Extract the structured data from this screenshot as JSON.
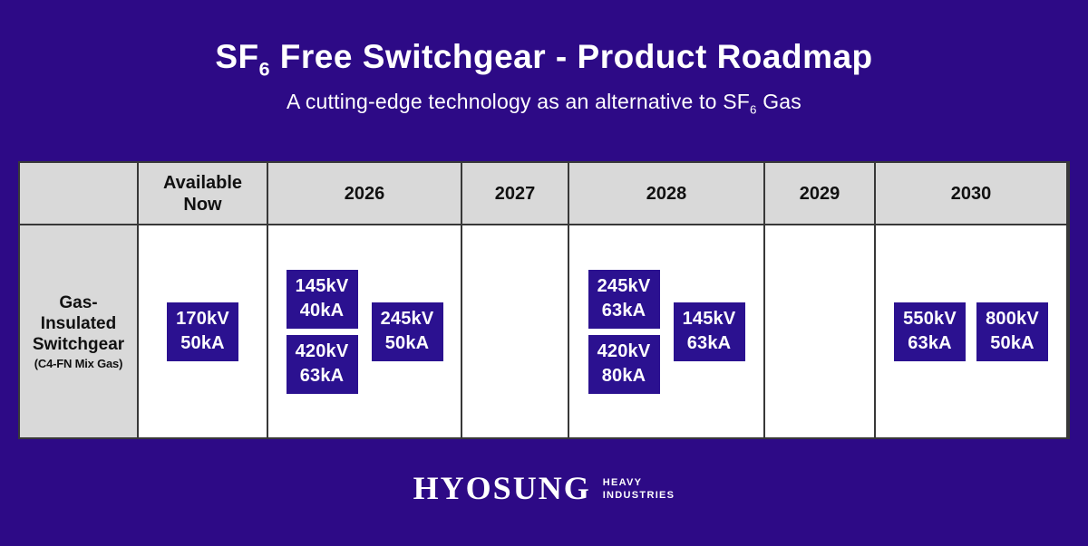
{
  "colors": {
    "background": "#2d0a86",
    "chip": "#2b1190",
    "chip_text": "#ffffff",
    "header_cell_bg": "#d9d9d9",
    "body_cell_bg": "#ffffff",
    "grid_border": "#383838",
    "title_text": "#ffffff",
    "table_text": "#111111"
  },
  "header": {
    "title_prefix": "SF",
    "title_subscript": "6",
    "title_suffix": " Free Switchgear - Product Roadmap",
    "subtitle_prefix": "A cutting-edge technology as an alternative to SF",
    "subtitle_subscript": "6",
    "subtitle_suffix": " Gas"
  },
  "table": {
    "row_header": {
      "title": "Gas-Insulated Switchgear",
      "note": "(C4-FN Mix Gas)"
    },
    "columns": [
      {
        "id": "available-now",
        "label": "Available Now"
      },
      {
        "id": "2026",
        "label": "2026"
      },
      {
        "id": "2027",
        "label": "2027"
      },
      {
        "id": "2028",
        "label": "2028"
      },
      {
        "id": "2029",
        "label": "2029"
      },
      {
        "id": "2030",
        "label": "2030"
      }
    ],
    "products": {
      "available_now": [
        {
          "kv": "170kV",
          "ka": "50kA"
        }
      ],
      "y2026_left": [
        {
          "kv": "145kV",
          "ka": "40kA"
        },
        {
          "kv": "420kV",
          "ka": "63kA"
        }
      ],
      "y2026_right": [
        {
          "kv": "245kV",
          "ka": "50kA"
        }
      ],
      "y2028_left": [
        {
          "kv": "245kV",
          "ka": "63kA"
        },
        {
          "kv": "420kV",
          "ka": "80kA"
        }
      ],
      "y2028_right": [
        {
          "kv": "145kV",
          "ka": "63kA"
        }
      ],
      "y2030": [
        {
          "kv": "550kV",
          "ka": "63kA"
        },
        {
          "kv": "800kV",
          "ka": "50kA"
        }
      ]
    }
  },
  "footer": {
    "brand": "HYOSUNG",
    "division_line1": "HEAVY",
    "division_line2": "INDUSTRIES"
  }
}
